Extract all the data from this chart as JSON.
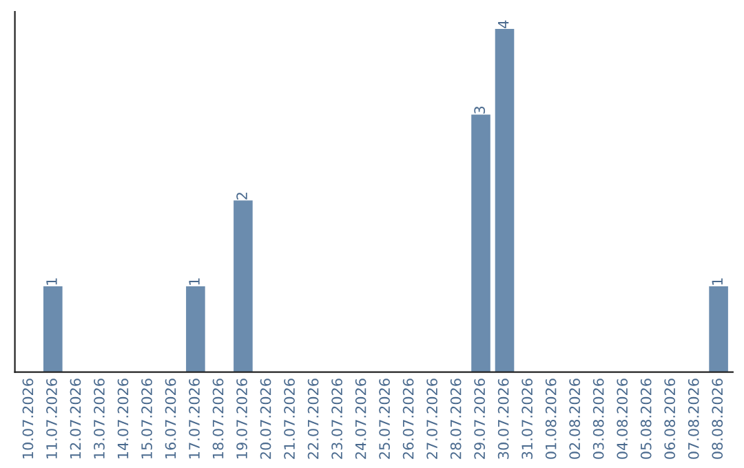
{
  "chart_data": {
    "type": "bar",
    "categories": [
      "10.07.2026",
      "11.07.2026",
      "12.07.2026",
      "13.07.2026",
      "14.07.2026",
      "15.07.2026",
      "16.07.2026",
      "17.07.2026",
      "18.07.2026",
      "19.07.2026",
      "20.07.2026",
      "21.07.2026",
      "22.07.2026",
      "23.07.2026",
      "24.07.2026",
      "25.07.2026",
      "26.07.2026",
      "27.07.2026",
      "28.07.2026",
      "29.07.2026",
      "30.07.2026",
      "31.07.2026",
      "01.08.2026",
      "02.08.2026",
      "03.08.2026",
      "04.08.2026",
      "05.08.2026",
      "06.08.2026",
      "07.08.2026",
      "08.08.2026"
    ],
    "values": [
      0,
      1,
      0,
      0,
      0,
      0,
      0,
      1,
      0,
      2,
      0,
      0,
      0,
      0,
      0,
      0,
      0,
      0,
      0,
      3,
      4,
      0,
      0,
      0,
      0,
      0,
      0,
      0,
      0,
      1
    ],
    "value_labels": [
      null,
      "1",
      null,
      null,
      null,
      null,
      null,
      "1",
      null,
      "2",
      null,
      null,
      null,
      null,
      null,
      null,
      null,
      null,
      null,
      "3",
      "4",
      null,
      null,
      null,
      null,
      null,
      null,
      null,
      null,
      "1"
    ],
    "color": "#6b8cae",
    "ylim": [
      0,
      4.2
    ],
    "tick_labels": "x",
    "grid": false,
    "legend": false
  }
}
